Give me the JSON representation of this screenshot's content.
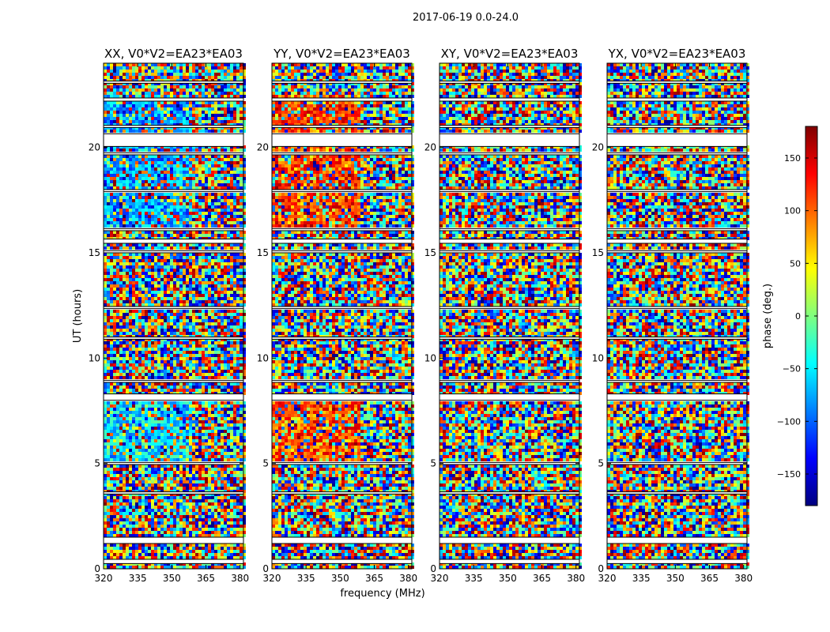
{
  "chart_data": {
    "type": "heatmap",
    "suptitle": "2017-06-19 0.0-24.0",
    "ylabel": "UT (hours)",
    "xlabel": "frequency (MHz)",
    "xlim": [
      320,
      381.5
    ],
    "ylim": [
      0,
      24
    ],
    "xticks": [
      320,
      335,
      350,
      365,
      380
    ],
    "yticks": [
      0,
      5,
      10,
      15,
      20
    ],
    "panels": [
      {
        "title": "XX, V0*V2=EA23*EA03",
        "pol": "XX"
      },
      {
        "title": "YY, V0*V2=EA23*EA03",
        "pol": "YY"
      },
      {
        "title": "XY, V0*V2=EA23*EA03",
        "pol": "XY"
      },
      {
        "title": "YX, V0*V2=EA23*EA03",
        "pol": "YX"
      }
    ],
    "flagged_intervals_hours": [
      [
        0.25,
        0.45
      ],
      [
        1.2,
        1.5
      ],
      [
        3.55,
        3.65
      ],
      [
        4.95,
        5.05
      ],
      [
        8.0,
        8.3
      ],
      [
        8.85,
        8.95
      ],
      [
        10.9,
        11.0
      ],
      [
        12.35,
        12.45
      ],
      [
        15.0,
        15.1
      ],
      [
        15.45,
        15.65
      ],
      [
        16.05,
        16.15
      ],
      [
        17.9,
        18.0
      ],
      [
        19.65,
        19.75
      ],
      [
        20.05,
        20.65
      ],
      [
        20.95,
        21.05
      ],
      [
        22.2,
        22.35
      ],
      [
        23.05,
        23.15
      ]
    ],
    "colorbar": {
      "label": "phase (deg.)",
      "range": [
        -180,
        180
      ],
      "ticks": [
        150,
        100,
        50,
        0,
        -50,
        -100,
        -150
      ],
      "tick_labels": [
        "150",
        "100",
        "50",
        "0",
        "−50",
        "−100",
        "−150"
      ],
      "colormap": "jet",
      "colormap_stops": [
        "#00007f",
        "#0000ff",
        "#007fff",
        "#00ffff",
        "#7fff7f",
        "#ffff00",
        "#ff7f00",
        "#ff0000",
        "#7f0000"
      ]
    }
  }
}
